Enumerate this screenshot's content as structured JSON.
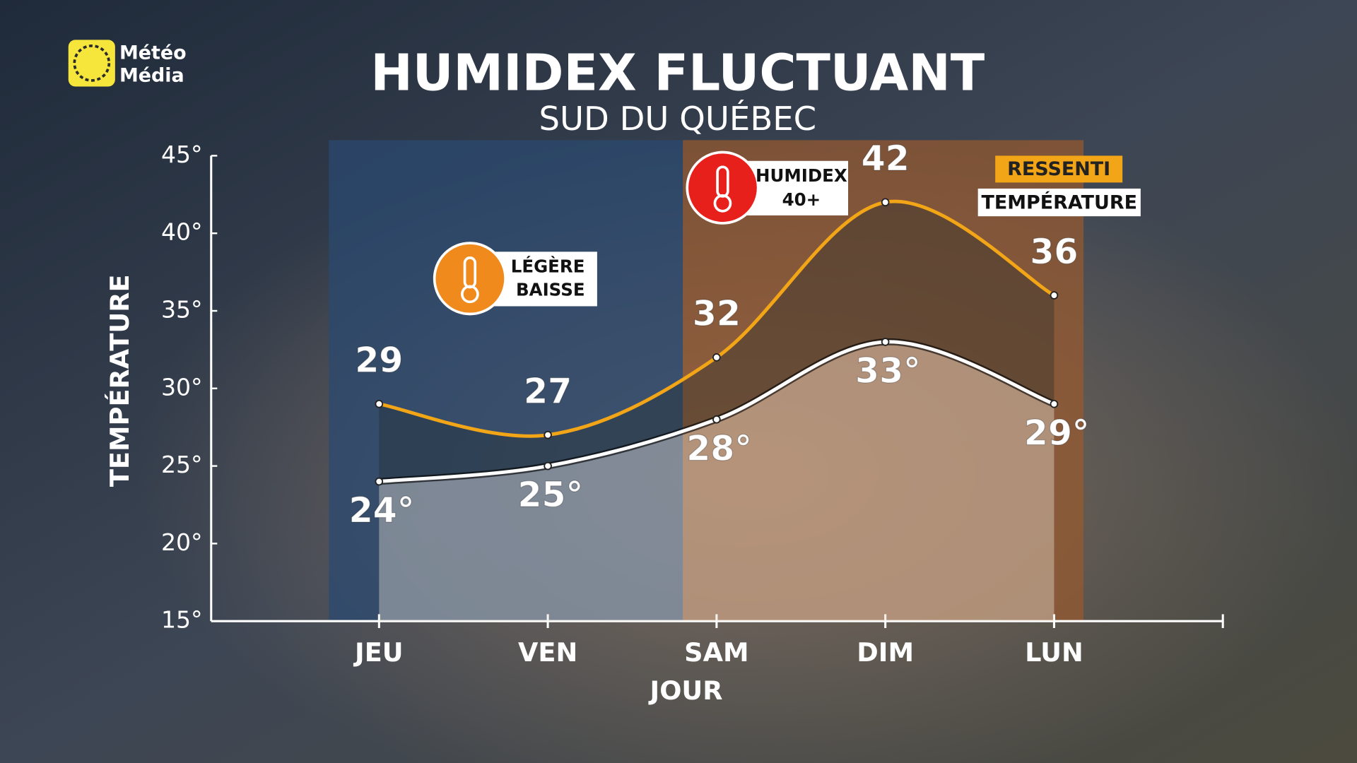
{
  "logo": [
    "Météo",
    "Média"
  ],
  "chart_data": {
    "type": "line",
    "title": "HUMIDEX FLUCTUANT",
    "subtitle": "SUD DU QUÉBEC",
    "y_label": "TEMPÉRATURE",
    "x_label": "JOUR",
    "categories": [
      "JEU",
      "VEN",
      "SAM",
      "DIM",
      "LUN"
    ],
    "series": [
      {
        "name": "RESSENTI",
        "color": "#f2a516",
        "values": [
          29,
          27,
          32,
          42,
          36
        ]
      },
      {
        "name": "TEMPÉRATURE",
        "color": "#ffffff",
        "values": [
          24,
          25,
          28,
          33,
          29
        ],
        "value_labels": [
          "24°",
          "25°",
          "28°",
          "33°",
          "29°"
        ]
      }
    ],
    "ylim": [
      15,
      45
    ],
    "yticks": [
      {
        "value": 15,
        "label": "15°"
      },
      {
        "value": 20,
        "label": "20°"
      },
      {
        "value": 25,
        "label": "25°"
      },
      {
        "value": 30,
        "label": "30°"
      },
      {
        "value": 35,
        "label": "35°"
      },
      {
        "value": 40,
        "label": "40°"
      },
      {
        "value": 45,
        "label": "45°"
      }
    ],
    "annotations": [
      [
        "LÉGÈRE",
        "BAISSE"
      ],
      [
        "HUMIDEX",
        "40+"
      ]
    ]
  }
}
